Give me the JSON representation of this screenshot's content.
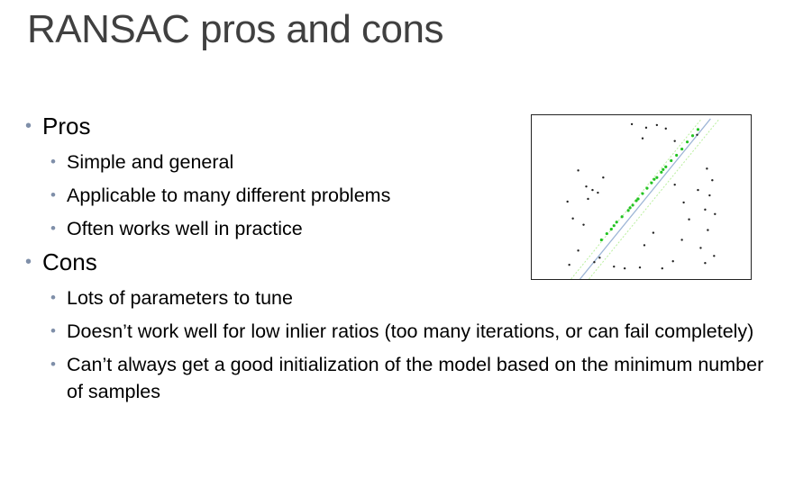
{
  "slide": {
    "title": "RANSAC pros and cons"
  },
  "colors": {
    "title": "#404040",
    "bullet": "#7f8fa9",
    "text": "#000000",
    "inlier": "#22c322",
    "outlier": "#222222",
    "fit_line": "#9db5d6"
  },
  "bullets": [
    {
      "label": "Pros",
      "items": [
        "Simple and general",
        "Applicable to many different problems",
        "Often works well in practice"
      ]
    },
    {
      "label": "Cons",
      "items": [
        "Lots of parameters to tune",
        "Doesn’t work well for low inlier ratios (too many iterations, or can fail completely)",
        "Can’t always get a good initialization of the model based on the minimum number of samples"
      ]
    }
  ],
  "figure": {
    "name": "ransac-line-fit-illustration",
    "icon": "scatter-plot-with-fitted-line"
  }
}
